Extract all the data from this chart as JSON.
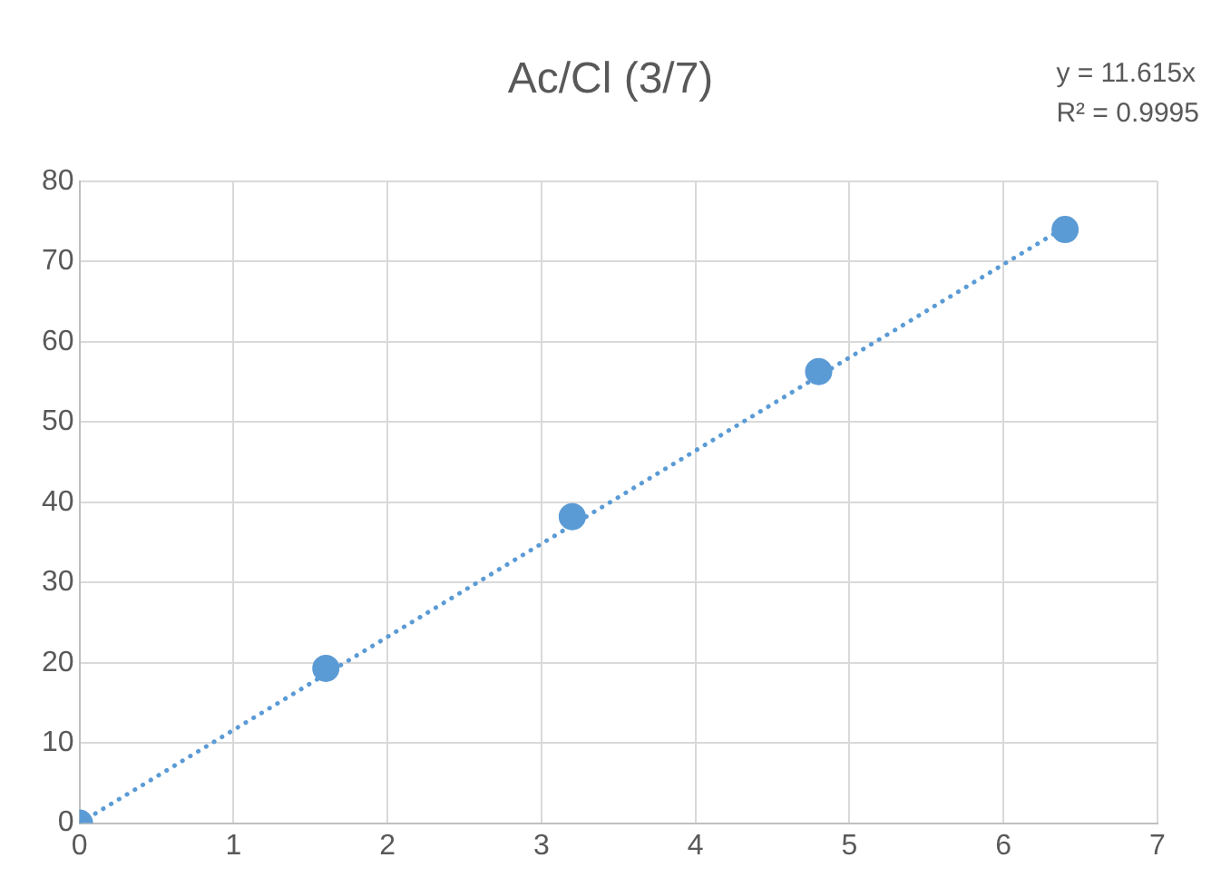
{
  "chart_data": {
    "type": "scatter",
    "title": "Ac/Cl (3/7)",
    "annotations": [
      "y = 11.615x",
      "R² = 0.9995"
    ],
    "x": [
      0,
      1.6,
      3.2,
      4.8,
      6.4
    ],
    "series": [
      {
        "type": "scatter",
        "color": "#5b9bd5",
        "values": [
          0,
          19.3,
          38.2,
          56.3,
          74
        ],
        "marker": "circle"
      },
      {
        "type": "line",
        "color": "#5b9bd5",
        "x": [
          0,
          6.4
        ],
        "values": [
          0,
          74.3
        ],
        "marker": "none",
        "line_style": "dotted"
      }
    ],
    "xlim": [
      0,
      7
    ],
    "xticks": [
      0,
      1,
      2,
      3,
      4,
      5,
      6,
      7
    ],
    "ylim": [
      0,
      80
    ],
    "yticks": [
      0,
      10,
      20,
      30,
      40,
      50,
      60,
      70,
      80
    ],
    "grid": true,
    "legend": false
  }
}
